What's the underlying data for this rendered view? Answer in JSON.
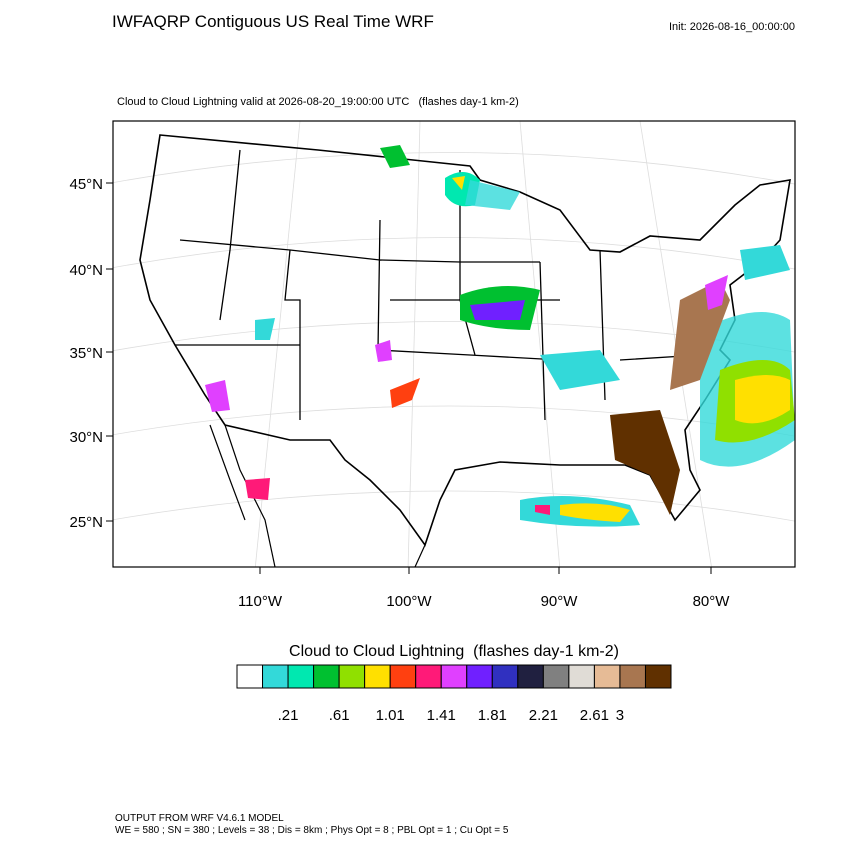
{
  "header": {
    "title": "IWFAQRP Contiguous US Real Time WRF",
    "init": "Init: 2026-08-16_00:00:00",
    "subtitle": "Cloud to Cloud Lightning valid at 2026-08-20_19:00:00 UTC   (flashes day-1 km-2)"
  },
  "map": {
    "lat_labels": [
      "45°N",
      "40°N",
      "35°N",
      "30°N",
      "25°N"
    ],
    "lon_labels": [
      "110°W",
      "100°W",
      "90°W",
      "80°W"
    ]
  },
  "colorbar": {
    "title": "Cloud to Cloud Lightning  (flashes day-1 km-2)",
    "colors": [
      "#ffffff",
      "#33d9d9",
      "#00e8b0",
      "#00c030",
      "#90e000",
      "#ffe000",
      "#ff4010",
      "#ff1a78",
      "#e040ff",
      "#7020ff",
      "#3030c0",
      "#202040",
      "#808080",
      "#e0dcd6",
      "#e6bb96",
      "#a87650",
      "#603000"
    ],
    "labels": [
      null,
      ".21",
      null,
      ".61",
      null,
      "1.01",
      null,
      "1.41",
      null,
      "1.81",
      null,
      "2.21",
      null,
      "2.61",
      "3",
      null
    ]
  },
  "footer": {
    "lines": [
      "OUTPUT FROM WRF V4.6.1 MODEL",
      "WE = 580 ; SN = 380 ; Levels = 38 ; Dis = 8km ; Phys Opt = 8 ; PBL Opt = 1 ; Cu Opt = 5"
    ]
  }
}
